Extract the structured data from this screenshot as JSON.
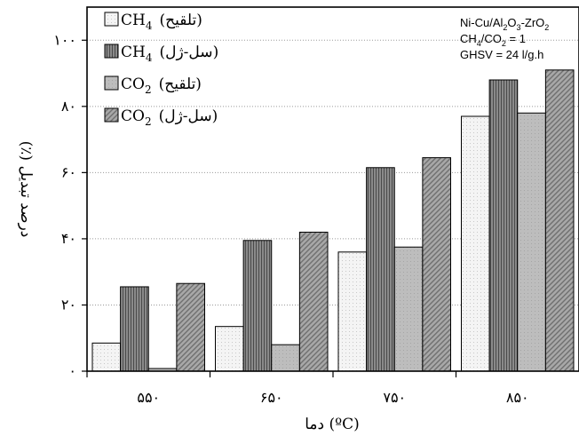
{
  "chart_data": {
    "type": "bar",
    "categories": [
      "۵۵۰",
      "۶۵۰",
      "۷۵۰",
      "۸۵۰"
    ],
    "series": [
      {
        "name": "CH4 (تلقیح)",
        "values": [
          8.5,
          13.5,
          36,
          77
        ],
        "color": "#f2f2f2",
        "pattern": "light-dots"
      },
      {
        "name": "CH4 (سل-ژل)",
        "values": [
          25.5,
          39.5,
          61.5,
          88
        ],
        "color": "#7a7a7a",
        "pattern": "dark-vertical"
      },
      {
        "name": "CO2 (تلقیح)",
        "values": [
          0.8,
          8,
          37.5,
          78
        ],
        "color": "#b5b5b5",
        "pattern": "medium-plain"
      },
      {
        "name": "CO2 (سل-ژل)",
        "values": [
          26.5,
          42,
          64.5,
          91
        ],
        "color": "#9c9c9c",
        "pattern": "dark-hatch"
      }
    ],
    "ylim": [
      0,
      110
    ],
    "yticks": [
      0,
      20,
      40,
      60,
      80,
      100
    ],
    "ytick_labels": [
      "۰",
      "۲۰",
      "۴۰",
      "۶۰",
      "۸۰",
      "۱۰۰"
    ],
    "ylabel": "درصد تبدیل (٪)",
    "xlabel": "دما (ºC)",
    "grid": "horizontal-dotted",
    "legend_position": "top-left",
    "legend": [
      {
        "gas": "CH",
        "sub": "4",
        "method": "(تلقیح)"
      },
      {
        "gas": "CH",
        "sub": "4",
        "method": "(سل-ژل)"
      },
      {
        "gas": "CO",
        "sub": "2",
        "method": "(تلقیح)"
      },
      {
        "gas": "CO",
        "sub": "2",
        "method": "(سل-ژل)"
      }
    ],
    "annotation": {
      "line1": "Ni-Cu/Al2O3-ZrO2",
      "line2": "CH4/CO2 = 1",
      "line3": "GHSV = 24 l/g.h"
    }
  }
}
